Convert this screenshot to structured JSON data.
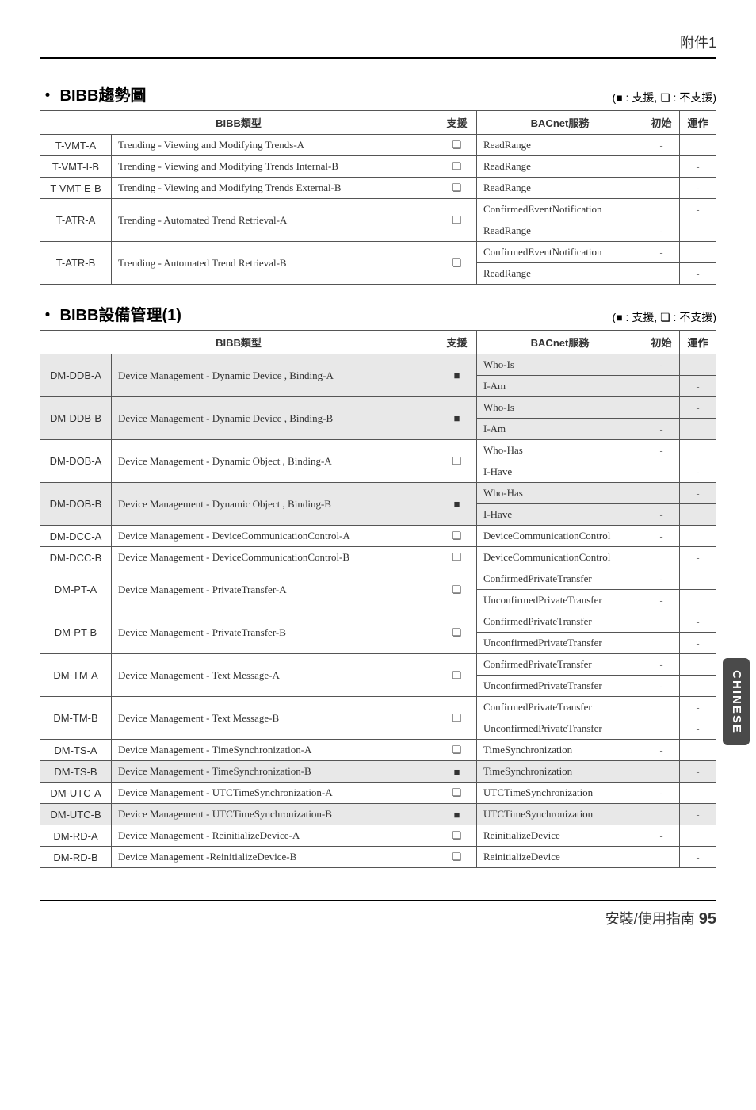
{
  "header": {
    "title": "附件1"
  },
  "legend": {
    "supported": "■ : 支援",
    "unsupported": "❏ : 不支援"
  },
  "section1": {
    "title": "・ BIBB趨勢圖",
    "columns": {
      "type": "BIBB類型",
      "support": "支援",
      "service": "BACnet服務",
      "init": "初始",
      "op": "運作"
    },
    "rows": [
      {
        "code": "T-VMT-A",
        "desc": "Trending - Viewing and Modifying Trends-A",
        "support": "hollow",
        "services": [
          {
            "name": "ReadRange",
            "init": "-",
            "op": ""
          }
        ]
      },
      {
        "code": "T-VMT-I-B",
        "desc": "Trending - Viewing and Modifying Trends Internal-B",
        "support": "hollow",
        "services": [
          {
            "name": "ReadRange",
            "init": "",
            "op": "-"
          }
        ]
      },
      {
        "code": "T-VMT-E-B",
        "desc": "Trending - Viewing and Modifying Trends External-B",
        "support": "hollow",
        "services": [
          {
            "name": "ReadRange",
            "init": "",
            "op": "-"
          }
        ]
      },
      {
        "code": "T-ATR-A",
        "desc": "Trending - Automated Trend Retrieval-A",
        "support": "hollow",
        "services": [
          {
            "name": "ConfirmedEventNotification",
            "init": "",
            "op": "-"
          },
          {
            "name": "ReadRange",
            "init": "-",
            "op": ""
          }
        ]
      },
      {
        "code": "T-ATR-B",
        "desc": "Trending - Automated Trend Retrieval-B",
        "support": "hollow",
        "services": [
          {
            "name": "ConfirmedEventNotification",
            "init": "-",
            "op": ""
          },
          {
            "name": "ReadRange",
            "init": "",
            "op": "-"
          }
        ]
      }
    ]
  },
  "section2": {
    "title": "・ BIBB設備管理(1)",
    "columns": {
      "type": "BIBB類型",
      "support": "支援",
      "service": "BACnet服務",
      "init": "初始",
      "op": "運作"
    },
    "rows": [
      {
        "shaded": true,
        "code": "DM-DDB-A",
        "desc": "Device Management  -  Dynamic Device , Binding-A",
        "support": "filled",
        "services": [
          {
            "name": "Who-Is",
            "init": "-",
            "op": ""
          },
          {
            "name": "I-Am",
            "init": "",
            "op": "-"
          }
        ]
      },
      {
        "shaded": true,
        "code": "DM-DDB-B",
        "desc": "Device Management - Dynamic Device , Binding-B",
        "support": "filled",
        "services": [
          {
            "name": "Who-Is",
            "init": "",
            "op": "-"
          },
          {
            "name": "I-Am",
            "init": "-",
            "op": ""
          }
        ]
      },
      {
        "shaded": false,
        "code": "DM-DOB-A",
        "desc": "Device Management - Dynamic Object , Binding-A",
        "support": "hollow",
        "services": [
          {
            "name": "Who-Has",
            "init": "-",
            "op": ""
          },
          {
            "name": "I-Have",
            "init": "",
            "op": "-"
          }
        ]
      },
      {
        "shaded": true,
        "code": "DM-DOB-B",
        "desc": "Device Management - Dynamic Object , Binding-B",
        "support": "filled",
        "services": [
          {
            "name": "Who-Has",
            "init": "",
            "op": "-"
          },
          {
            "name": "I-Have",
            "init": "-",
            "op": ""
          }
        ]
      },
      {
        "shaded": false,
        "code": "DM-DCC-A",
        "desc": "Device Management - DeviceCommunicationControl-A",
        "support": "hollow",
        "services": [
          {
            "name": "DeviceCommunicationControl",
            "init": "-",
            "op": ""
          }
        ]
      },
      {
        "shaded": false,
        "code": "DM-DCC-B",
        "desc": "Device Management - DeviceCommunicationControl-B",
        "support": "hollow",
        "services": [
          {
            "name": "DeviceCommunicationControl",
            "init": "",
            "op": "-"
          }
        ]
      },
      {
        "shaded": false,
        "code": "DM-PT-A",
        "desc": "Device Management - PrivateTransfer-A",
        "support": "hollow",
        "services": [
          {
            "name": "ConfirmedPrivateTransfer",
            "init": "-",
            "op": ""
          },
          {
            "name": "UnconfirmedPrivateTransfer",
            "init": "-",
            "op": ""
          }
        ]
      },
      {
        "shaded": false,
        "code": "DM-PT-B",
        "desc": "Device Management - PrivateTransfer-B",
        "support": "hollow",
        "services": [
          {
            "name": "ConfirmedPrivateTransfer",
            "init": "",
            "op": "-"
          },
          {
            "name": "UnconfirmedPrivateTransfer",
            "init": "",
            "op": "-"
          }
        ]
      },
      {
        "shaded": false,
        "code": "DM-TM-A",
        "desc": "Device Management - Text Message-A",
        "support": "hollow",
        "services": [
          {
            "name": "ConfirmedPrivateTransfer",
            "init": "-",
            "op": ""
          },
          {
            "name": "UnconfirmedPrivateTransfer",
            "init": "-",
            "op": ""
          }
        ]
      },
      {
        "shaded": false,
        "code": "DM-TM-B",
        "desc": "Device Management - Text Message-B",
        "support": "hollow",
        "services": [
          {
            "name": "ConfirmedPrivateTransfer",
            "init": "",
            "op": "-"
          },
          {
            "name": "UnconfirmedPrivateTransfer",
            "init": "",
            "op": "-"
          }
        ]
      },
      {
        "shaded": false,
        "code": "DM-TS-A",
        "desc": "Device Management - TimeSynchronization-A",
        "support": "hollow",
        "services": [
          {
            "name": "TimeSynchronization",
            "init": "-",
            "op": ""
          }
        ]
      },
      {
        "shaded": true,
        "code": "DM-TS-B",
        "desc": "Device Management - TimeSynchronization-B",
        "support": "filled",
        "services": [
          {
            "name": "TimeSynchronization",
            "init": "",
            "op": "-"
          }
        ]
      },
      {
        "shaded": false,
        "code": "DM-UTC-A",
        "desc": "Device Management - UTCTimeSynchronization-A",
        "support": "hollow",
        "services": [
          {
            "name": "UTCTimeSynchronization",
            "init": "-",
            "op": ""
          }
        ]
      },
      {
        "shaded": true,
        "code": "DM-UTC-B",
        "desc": "Device Management - UTCTimeSynchronization-B",
        "support": "filled",
        "services": [
          {
            "name": "UTCTimeSynchronization",
            "init": "",
            "op": "-"
          }
        ]
      },
      {
        "shaded": false,
        "code": "DM-RD-A",
        "desc": "Device Management - ReinitializeDevice-A",
        "support": "hollow",
        "services": [
          {
            "name": "ReinitializeDevice",
            "init": "-",
            "op": ""
          }
        ]
      },
      {
        "shaded": false,
        "code": "DM-RD-B",
        "desc": "Device Management -ReinitializeDevice-B",
        "support": "hollow",
        "services": [
          {
            "name": "ReinitializeDevice",
            "init": "",
            "op": "-"
          }
        ]
      }
    ]
  },
  "sideTab": "CHINESE",
  "footer": {
    "text": "安裝/使用指南",
    "page": "95"
  }
}
